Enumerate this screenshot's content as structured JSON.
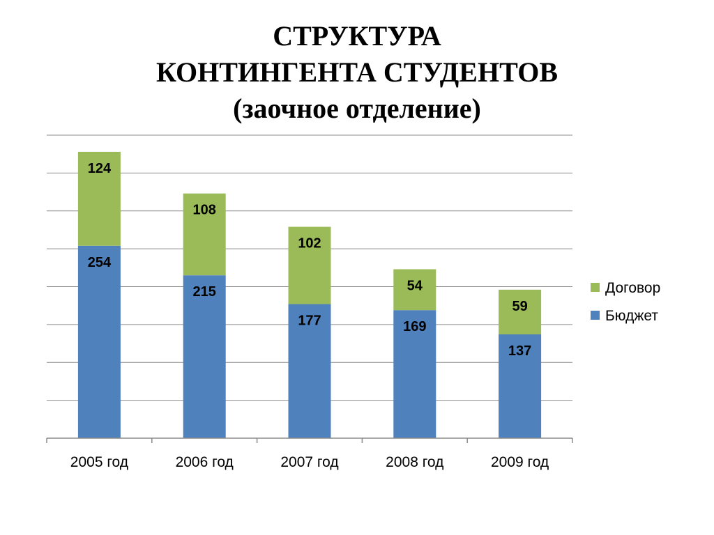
{
  "title_lines": [
    "СТРУКТУРА",
    "КОНТИНГЕНТА СТУДЕНТОВ",
    "(заочное отделение)"
  ],
  "chart_data": {
    "type": "bar",
    "stacked": true,
    "categories": [
      "2005 год",
      "2006 год",
      "2007 год",
      "2008 год",
      "2009 год"
    ],
    "series": [
      {
        "name": "Бюджет",
        "color": "#4f81bd",
        "values": [
          254,
          215,
          177,
          169,
          137
        ]
      },
      {
        "name": "Договор",
        "color": "#9bbb59",
        "values": [
          124,
          108,
          102,
          54,
          59
        ]
      }
    ],
    "ylim": [
      0,
      400
    ],
    "grid": true,
    "legend": "right",
    "data_labels": true
  }
}
